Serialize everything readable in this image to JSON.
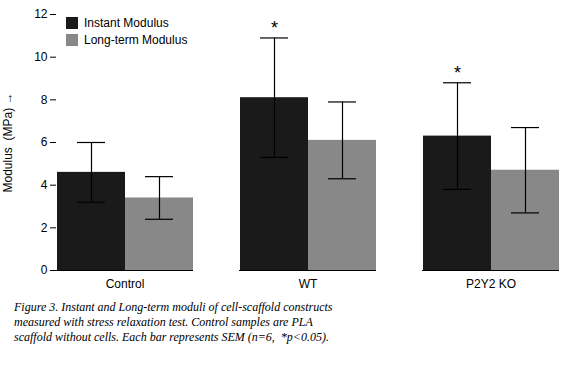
{
  "chart_data": {
    "type": "bar",
    "categories": [
      "Control",
      "WT",
      "P2Y2 KO"
    ],
    "series": [
      {
        "name": "Instant Modulus",
        "color": "#1a1a1a",
        "values": [
          4.6,
          8.1,
          6.3
        ],
        "errors": [
          1.4,
          2.8,
          2.5
        ]
      },
      {
        "name": "Long-term Modulus",
        "color": "#888888",
        "values": [
          3.4,
          6.1,
          4.7
        ],
        "errors": [
          1.0,
          1.8,
          2.0
        ]
      }
    ],
    "ylabel": "Modulus  (MPa)",
    "ylim": [
      0,
      12
    ],
    "yticks": [
      0,
      2,
      4,
      6,
      8,
      10,
      12
    ],
    "legend": "upper left",
    "annotations": [
      {
        "text": "*",
        "category": "WT",
        "series": "Instant Modulus"
      },
      {
        "text": "*",
        "category": "P2Y2 KO",
        "series": "Instant Modulus"
      }
    ],
    "caption": [
      "Figure 3. Instant and Long-term moduli of cell-scaffold constructs",
      "measured with stress relaxation test. Control samples are PLA",
      "scaffold without cells. Each bar represents SEM (n=6,  *p<0.05)."
    ]
  }
}
